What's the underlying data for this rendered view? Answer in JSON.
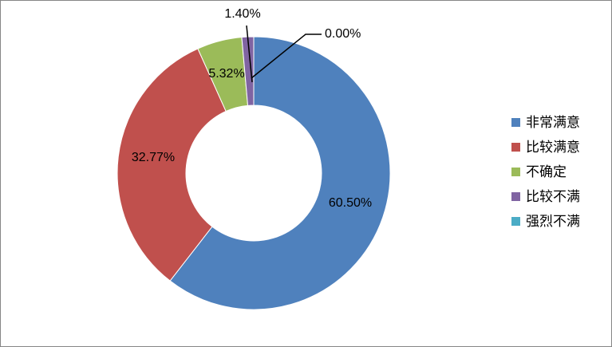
{
  "chart_data": {
    "type": "pie",
    "title": "",
    "categories": [
      "非常满意",
      "比较满意",
      "不确定",
      "比较不满",
      "强烈不满"
    ],
    "values": [
      60.5,
      32.77,
      5.32,
      1.4,
      0.0
    ],
    "data_labels": [
      "60.50%",
      "32.77%",
      "5.32%",
      "1.40%",
      "0.00%"
    ],
    "colors": [
      "#4F81BD",
      "#C0504D",
      "#9BBB59",
      "#8064A2",
      "#4BACC6"
    ],
    "legend": {
      "position": "right",
      "entries": [
        "非常满意",
        "比较满意",
        "不确定",
        "比较不满",
        "强烈不满"
      ]
    },
    "hole": true
  }
}
